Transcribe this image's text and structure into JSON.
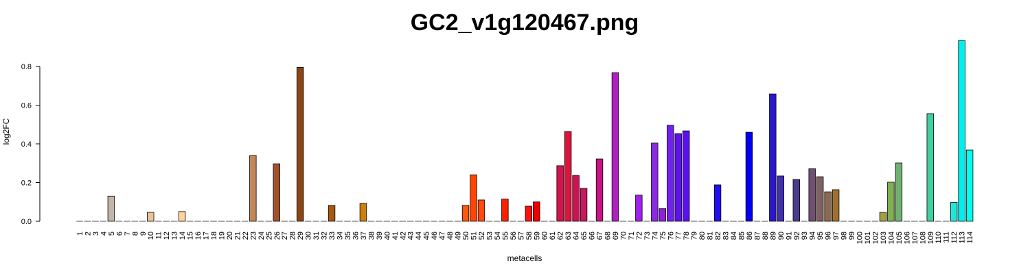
{
  "chart_data": {
    "type": "bar",
    "title": "GC2_v1g120467.png",
    "xlabel": "metacells",
    "ylabel": "log2FC",
    "categories": [
      "1",
      "2",
      "3",
      "4",
      "5",
      "6",
      "7",
      "8",
      "9",
      "10",
      "11",
      "12",
      "13",
      "14",
      "15",
      "16",
      "17",
      "18",
      "19",
      "20",
      "21",
      "22",
      "23",
      "24",
      "25",
      "26",
      "27",
      "28",
      "29",
      "30",
      "31",
      "32",
      "33",
      "34",
      "35",
      "36",
      "37",
      "38",
      "39",
      "40",
      "41",
      "42",
      "43",
      "44",
      "45",
      "46",
      "47",
      "48",
      "49",
      "50",
      "51",
      "52",
      "53",
      "54",
      "55",
      "56",
      "57",
      "58",
      "59",
      "60",
      "61",
      "62",
      "63",
      "64",
      "65",
      "66",
      "67",
      "68",
      "69",
      "70",
      "71",
      "72",
      "73",
      "74",
      "75",
      "76",
      "77",
      "78",
      "79",
      "80",
      "81",
      "82",
      "83",
      "84",
      "85",
      "86",
      "87",
      "88",
      "89",
      "90",
      "91",
      "92",
      "93",
      "94",
      "95",
      "96",
      "97",
      "98",
      "99",
      "100",
      "101",
      "102",
      "103",
      "104",
      "105",
      "106",
      "107",
      "108",
      "109",
      "110",
      "111",
      "112",
      "113",
      "114"
    ],
    "values": [
      0,
      0,
      0,
      0,
      0.13,
      0,
      0,
      0,
      0,
      0.046,
      0,
      0,
      0,
      0.05,
      0,
      0,
      0,
      0,
      0,
      0,
      0,
      0,
      0.34,
      0,
      0,
      0.297,
      0,
      0,
      0.795,
      0,
      0,
      0,
      0.082,
      0,
      0,
      0,
      0.093,
      0,
      0,
      0,
      0,
      0,
      0,
      0,
      0,
      0,
      0,
      0,
      0,
      0.082,
      0.24,
      0.11,
      0,
      0,
      0.115,
      0,
      0,
      0.078,
      0.1,
      0,
      0,
      0.287,
      0.464,
      0.237,
      0.17,
      0,
      0.322,
      0,
      0.768,
      0,
      0,
      0.135,
      0,
      0.404,
      0.065,
      0.496,
      0.453,
      0.467,
      0,
      0,
      0,
      0.188,
      0,
      0,
      0,
      0.46,
      0,
      0,
      0.658,
      0.234,
      0,
      0.216,
      0,
      0.272,
      0.23,
      0.152,
      0.163,
      0,
      0,
      0,
      0,
      0,
      0.046,
      0.202,
      0.301,
      0,
      0,
      0,
      0.556,
      0,
      0,
      0.098,
      0.934,
      0.368
    ],
    "colors": [
      "#c4b4a4",
      "#c4b4a4",
      "#c4b4a4",
      "#c4b4a4",
      "#c4b4a4",
      "#e6c49a",
      "#e6c49a",
      "#e6c49a",
      "#e6c49a",
      "#e6c49a",
      "#ffd39b",
      "#ffd39b",
      "#ffd39b",
      "#ffd39b",
      "#c0875a",
      "#c0875a",
      "#c0875a",
      "#c0875a",
      "#c0875a",
      "#c0875a",
      "#c0875a",
      "#c0875a",
      "#c0875a",
      "#a0522d",
      "#a0522d",
      "#a0522d",
      "#8b4513",
      "#8b4513",
      "#8b4513",
      "#a65a10",
      "#a65a10",
      "#a65a10",
      "#a65a10",
      "#cd7f10",
      "#cd7f10",
      "#cd7f10",
      "#cd7f10",
      "#ff8c00",
      "#ff8c00",
      "#ff8c00",
      "#ff8c00",
      "#ff8c00",
      "#ff8c00",
      "#ff8c00",
      "#ff8c00",
      "#ff8c00",
      "#ff8c00",
      "#ff8c00",
      "#ff8c00",
      "#ff5a0a",
      "#ff4500",
      "#ff4a10",
      "#ff3000",
      "#ff2500",
      "#ff2000",
      "#ff1800",
      "#ff1500",
      "#ff1010",
      "#ee0000",
      "#e00030",
      "#da0840",
      "#d8104a",
      "#dc143c",
      "#d01050",
      "#c81860",
      "#c71585",
      "#c71585",
      "#b820a0",
      "#b020c0",
      "#a020e0",
      "#a020f0",
      "#a020f0",
      "#9428e8",
      "#8a2be2",
      "#9020e0",
      "#7020f0",
      "#6010f0",
      "#5a10f0",
      "#2010f0",
      "#2010f0",
      "#2010f0",
      "#2010f0",
      "#0000ee",
      "#0000ee",
      "#0000ee",
      "#0000ee",
      "#2a18c8",
      "#2a18c8",
      "#2a18c8",
      "#4030b0",
      "#483d8b",
      "#483d8b",
      "#604878",
      "#705070",
      "#806060",
      "#8c6a50",
      "#a07030",
      "#a0a040",
      "#a0a040",
      "#a0a040",
      "#a0a040",
      "#a0a040",
      "#a0a040",
      "#80b050",
      "#70b070",
      "#40d0a0",
      "#40d0a0",
      "#40d0a0",
      "#40d0a0",
      "#20e8d8",
      "#20e8d8",
      "#20e8d8",
      "#00f0f0",
      "#00ffee"
    ],
    "ylim": [
      0,
      0.95
    ],
    "yticks": [
      {
        "value": 0,
        "label": "0.0"
      },
      0.2,
      0.4,
      0.6,
      0.8
    ]
  }
}
